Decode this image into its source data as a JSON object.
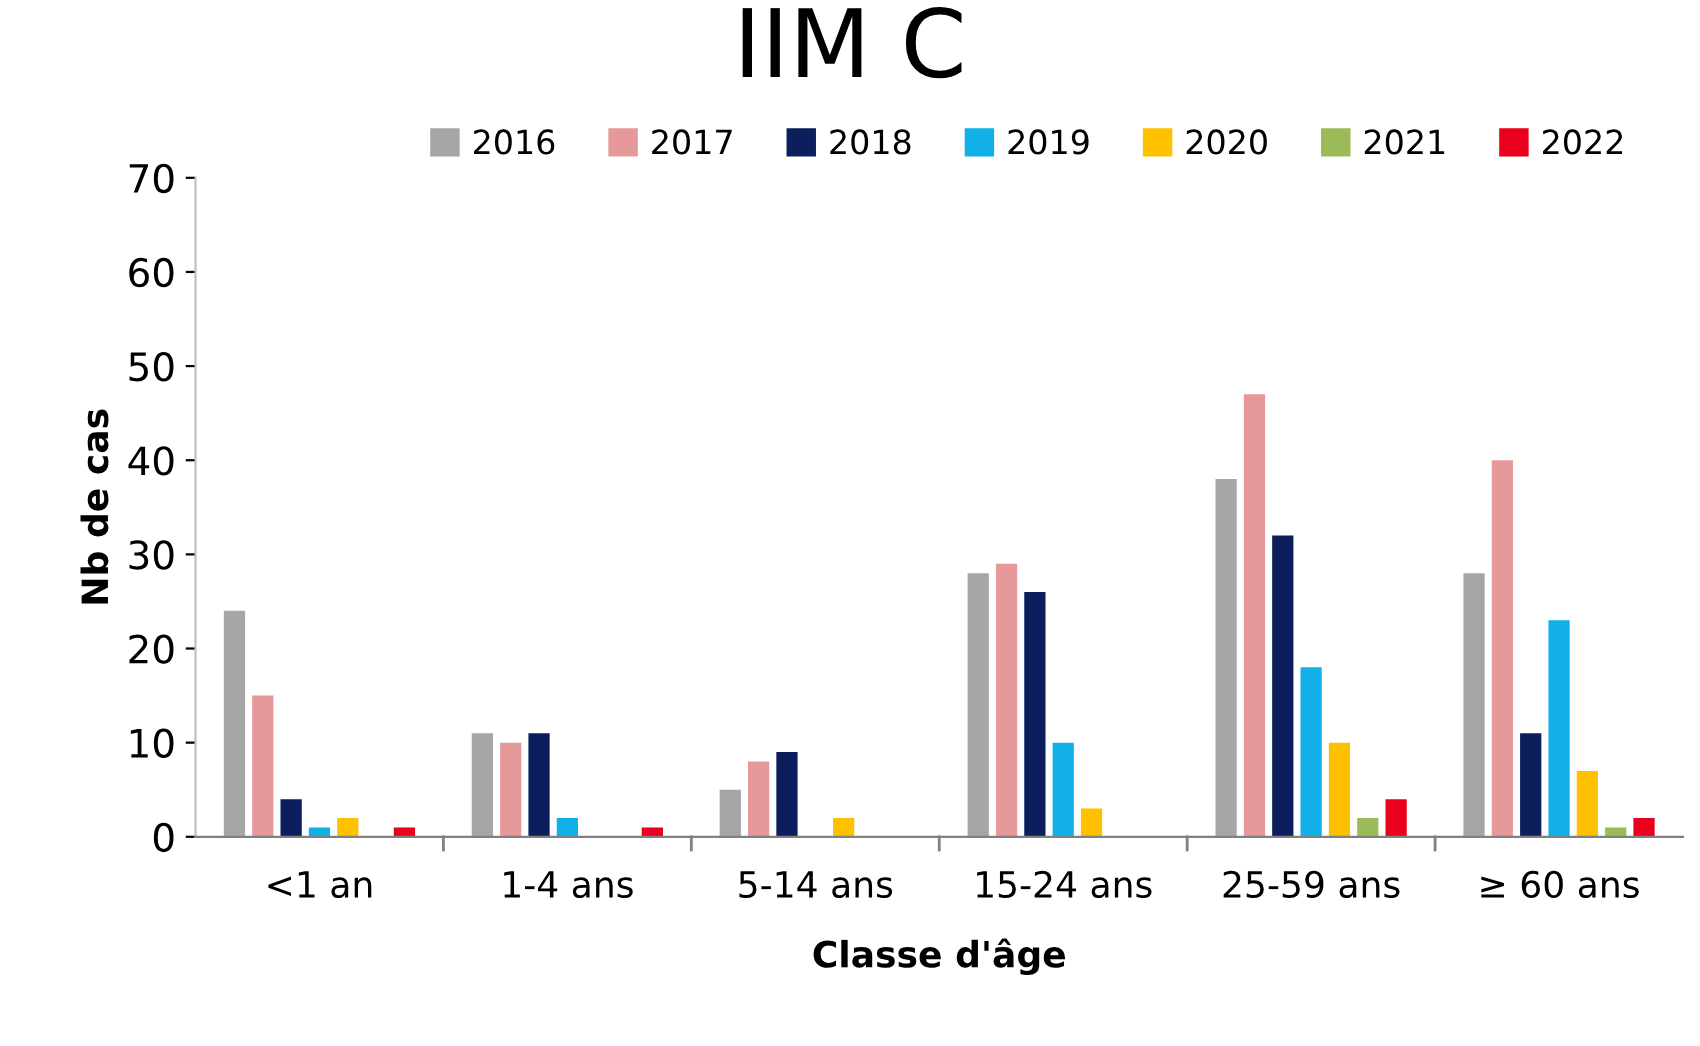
{
  "chart_data": {
    "type": "bar",
    "title": "IIM C",
    "xlabel": "Classe d'âge",
    "ylabel": "Nb de cas",
    "categories": [
      "<1 an",
      "1-4 ans",
      "5-14 ans",
      "15-24 ans",
      "25-59 ans",
      "≥ 60 ans"
    ],
    "series": [
      {
        "name": "2016",
        "color": "#a6a6a6",
        "values": [
          24,
          11,
          5,
          28,
          38,
          28
        ]
      },
      {
        "name": "2017",
        "color": "#e6999b",
        "values": [
          15,
          10,
          8,
          29,
          47,
          40
        ]
      },
      {
        "name": "2018",
        "color": "#0c1f5c",
        "values": [
          4,
          11,
          9,
          26,
          32,
          11
        ]
      },
      {
        "name": "2019",
        "color": "#12b0e8",
        "values": [
          1,
          2,
          0,
          10,
          18,
          23
        ]
      },
      {
        "name": "2020",
        "color": "#ffc000",
        "values": [
          2,
          0,
          2,
          3,
          10,
          7
        ]
      },
      {
        "name": "2021",
        "color": "#9bbb59",
        "values": [
          0,
          0,
          0,
          0,
          2,
          1
        ]
      },
      {
        "name": "2022",
        "color": "#e8001c",
        "values": [
          1,
          1,
          0,
          0,
          4,
          2
        ]
      }
    ],
    "ylim": [
      0,
      70
    ],
    "yticks": [
      0,
      10,
      20,
      30,
      40,
      50,
      60,
      70
    ],
    "grid": false,
    "legend": "top"
  }
}
